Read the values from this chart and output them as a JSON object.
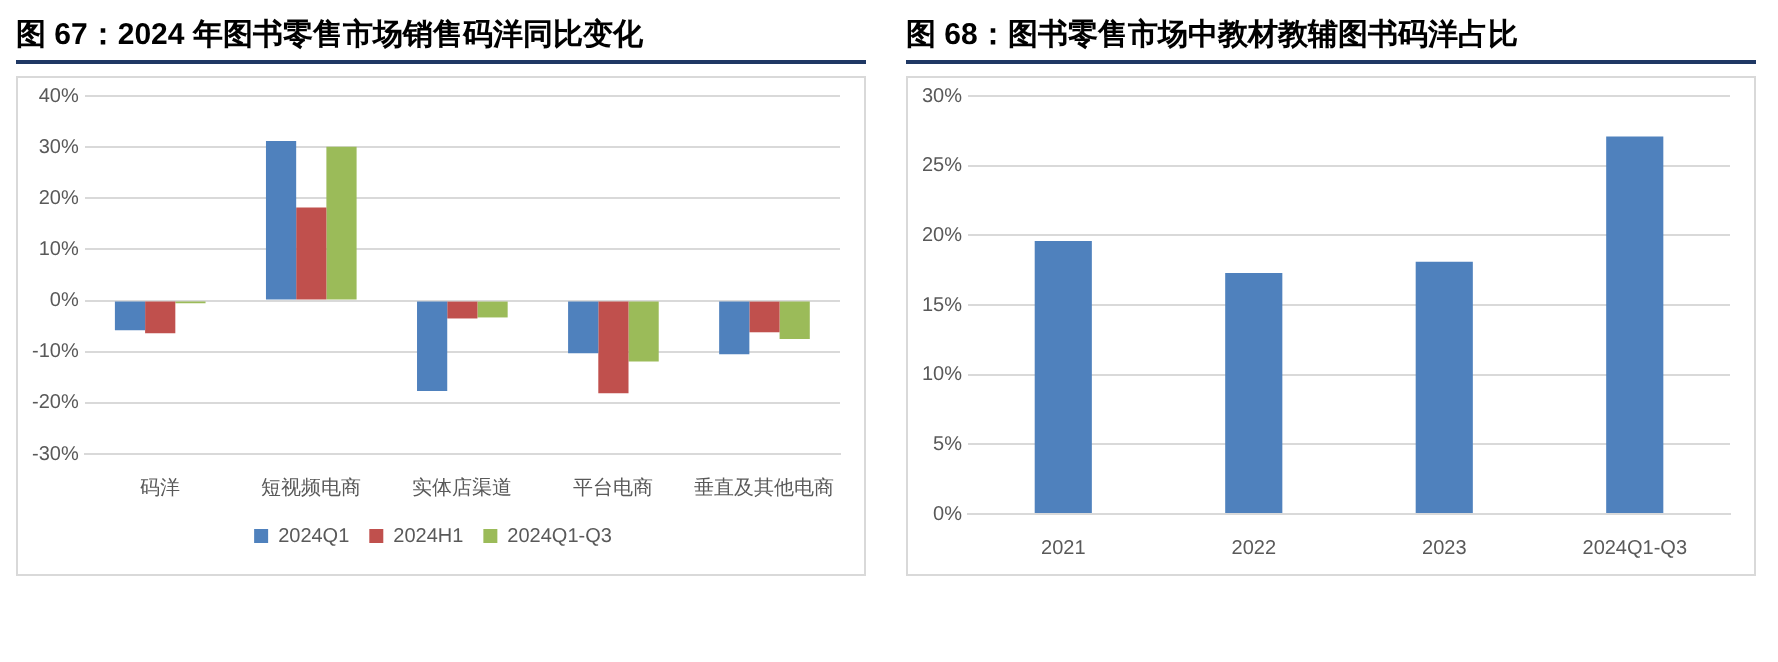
{
  "chart_data": [
    {
      "type": "bar",
      "title": "图 67：2024 年图书零售市场销售码洋同比变化",
      "categories": [
        "码洋",
        "短视频电商",
        "实体店渠道",
        "平台电商",
        "垂直及其他电商"
      ],
      "series": [
        {
          "name": "2024Q1",
          "color": "#4f81bd",
          "values": [
            -5.8,
            31.2,
            -17.7,
            -10.3,
            -10.5
          ]
        },
        {
          "name": "2024H1",
          "color": "#c0504d",
          "values": [
            -6.4,
            18.2,
            -3.5,
            -18.1,
            -6.2
          ]
        },
        {
          "name": "2024Q1-Q3",
          "color": "#9bbb59",
          "values": [
            -0.5,
            30.1,
            -3.3,
            -11.9,
            -7.5
          ]
        }
      ],
      "ylim": [
        -30,
        40
      ],
      "yticks": [
        {
          "value": -30,
          "label": "-30%"
        },
        {
          "value": -20,
          "label": "-20%"
        },
        {
          "value": -10,
          "label": "-10%"
        },
        {
          "value": 0,
          "label": "0%"
        },
        {
          "value": 10,
          "label": "10%"
        },
        {
          "value": 20,
          "label": "20%"
        },
        {
          "value": 30,
          "label": "30%"
        },
        {
          "value": 40,
          "label": "40%"
        }
      ],
      "grid": "y",
      "legend": "bottom"
    },
    {
      "type": "bar",
      "title": "图 68：图书零售市场中教材教辅图书码洋占比",
      "categories": [
        "2021",
        "2022",
        "2023",
        "2024Q1-Q3"
      ],
      "series": [
        {
          "color": "#4f81bd",
          "values": [
            19.6,
            17.3,
            18.1,
            27.1
          ]
        }
      ],
      "ylim": [
        0,
        30
      ],
      "yticks": [
        {
          "value": 0,
          "label": "0%"
        },
        {
          "value": 5,
          "label": "5%"
        },
        {
          "value": 10,
          "label": "10%"
        },
        {
          "value": 15,
          "label": "15%"
        },
        {
          "value": 20,
          "label": "20%"
        },
        {
          "value": 25,
          "label": "25%"
        },
        {
          "value": 30,
          "label": "30%"
        }
      ],
      "grid": "y"
    }
  ]
}
